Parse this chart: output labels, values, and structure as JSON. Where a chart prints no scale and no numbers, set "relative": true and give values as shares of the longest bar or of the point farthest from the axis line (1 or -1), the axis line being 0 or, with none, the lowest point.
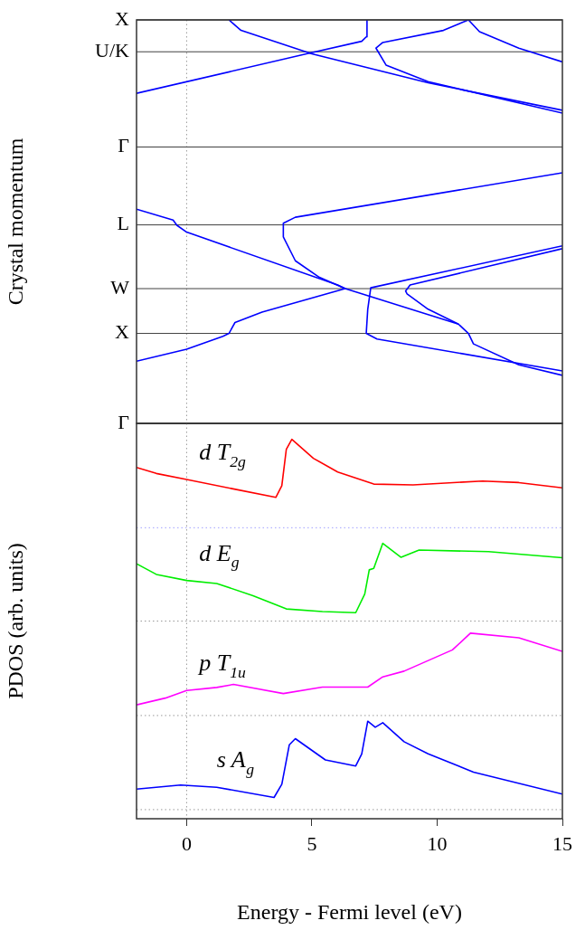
{
  "chart_data": [
    {
      "type": "line",
      "ylabel": "Crystal momentum",
      "xlim": [
        -2,
        15
      ],
      "xticks": [
        0,
        5,
        10,
        15
      ],
      "relative": true,
      "tick_labels": "y",
      "marker": "none",
      "ref_lines": [
        {
          "axis": "x",
          "value": 0,
          "color": "#999999",
          "line_style": "dotted"
        },
        {
          "axis": "y",
          "value": 0,
          "label": "Γ",
          "color": "#404040"
        },
        {
          "axis": "y",
          "value": 0.223,
          "label": "X",
          "color": "#404040"
        },
        {
          "axis": "y",
          "value": 0.334,
          "label": "W",
          "color": "#404040"
        },
        {
          "axis": "y",
          "value": 0.492,
          "label": "L",
          "color": "#404040"
        },
        {
          "axis": "y",
          "value": 0.685,
          "label": "Γ",
          "color": "#404040"
        },
        {
          "axis": "y",
          "value": 0.921,
          "label": "U/K",
          "color": "#404040"
        },
        {
          "axis": "y",
          "value": 1,
          "label": "X",
          "color": "#404040"
        }
      ],
      "series": [
        {
          "color": "#0000ff",
          "x": [
            -2.0,
            4.94,
            6.99,
            7.17,
            7.2
          ],
          "values": [
            0.818,
            0.918,
            0.947,
            0.958,
            1
          ]
        },
        {
          "color": "#0000ff",
          "x": [
            1.69,
            2.17,
            5.0,
            9.64,
            15.0
          ],
          "values": [
            1,
            0.974,
            0.916,
            0.844,
            0.776
          ]
        },
        {
          "color": "#0000ff",
          "x": [
            11.25,
            10.25,
            7.83,
            7.56,
            7.96,
            9.64,
            15.0
          ],
          "values": [
            1,
            0.974,
            0.944,
            0.93,
            0.888,
            0.847,
            0.769
          ]
        },
        {
          "color": "#0000ff",
          "x": [
            11.25,
            11.69,
            13.26,
            15.0
          ],
          "values": [
            1,
            0.971,
            0.93,
            0.896
          ]
        },
        {
          "color": "#0000ff",
          "x": [
            -2.0,
            -0.54,
            -0.39,
            0,
            6.03,
            6.33,
            10.85,
            11.25,
            11.45,
            13.26,
            15.0
          ],
          "values": [
            0.531,
            0.504,
            0.491,
            0.474,
            0.343,
            0.334,
            0.246,
            0.223,
            0.197,
            0.145,
            0.119
          ]
        },
        {
          "color": "#0000ff",
          "x": [
            15.0,
            4.34,
            3.86,
            3.86,
            4.34,
            5.3,
            6.33,
            3.01,
            1.93,
            1.69,
            1.45,
            0,
            -2.0
          ],
          "values": [
            0.621,
            0.511,
            0.496,
            0.462,
            0.403,
            0.362,
            0.334,
            0.276,
            0.25,
            0.223,
            0.216,
            0.184,
            0.154
          ]
        },
        {
          "color": "#0000ff",
          "x": [
            15.0,
            7.35,
            7.23,
            7.17,
            7.6,
            15.0
          ],
          "values": [
            0.44,
            0.336,
            0.283,
            0.223,
            0.209,
            0.13
          ]
        },
        {
          "color": "#0000ff",
          "x": [
            15.0,
            8.92,
            8.74,
            8.8,
            9.64,
            10.85
          ],
          "values": [
            0.433,
            0.343,
            0.328,
            0.321,
            0.283,
            0.246
          ]
        }
      ]
    },
    {
      "type": "line",
      "xlabel": "Energy - Fermi level (eV)",
      "ylabel": "PDOS (arb. units)",
      "xlim": [
        -2,
        15
      ],
      "xticks": [
        0,
        5,
        10,
        15
      ],
      "relative": true,
      "marker": "none",
      "ref_lines": [
        {
          "axis": "x",
          "value": 0,
          "color": "#999999",
          "line_style": "dotted"
        },
        {
          "axis": "y",
          "value": 0.767,
          "color": "#a0a0ff",
          "line_style": "dotted"
        },
        {
          "axis": "y",
          "value": 0.521,
          "color": "#999999",
          "line_style": "dotted"
        },
        {
          "axis": "y",
          "value": 0.272,
          "color": "#999999",
          "line_style": "dotted"
        },
        {
          "axis": "y",
          "value": 0.024,
          "color": "#999999",
          "line_style": "dotted"
        }
      ],
      "series": [
        {
          "name": "d T$_{2g}$",
          "color": "#ff0000",
          "x": [
            -2.0,
            -1.21,
            0,
            1.81,
            3.56,
            3.8,
            3.98,
            4.2,
            5.06,
            6.03,
            7.47,
            9.04,
            11.81,
            13.26,
            15.0
          ],
          "values": [
            0.926,
            0.91,
            0.894,
            0.87,
            0.847,
            0.878,
            0.974,
            1.0,
            0.95,
            0.914,
            0.882,
            0.88,
            0.89,
            0.886,
            0.872
          ]
        },
        {
          "name": "d E$_{g}$",
          "color": "#00ee00",
          "x": [
            -2.0,
            -1.21,
            0,
            1.2,
            2.65,
            3.98,
            5.42,
            6.75,
            7.11,
            7.29,
            7.47,
            7.83,
            8.56,
            9.28,
            12.05,
            15.0
          ],
          "values": [
            0.672,
            0.644,
            0.628,
            0.62,
            0.588,
            0.553,
            0.546,
            0.543,
            0.592,
            0.656,
            0.66,
            0.726,
            0.689,
            0.708,
            0.704,
            0.688
          ]
        },
        {
          "name": "p T$_{1u}$",
          "color": "#ff00ff",
          "x": [
            -2.0,
            -0.85,
            0,
            1.2,
            1.87,
            3.86,
            5.42,
            7.23,
            7.83,
            8.68,
            10.61,
            11.33,
            13.26,
            15.0
          ],
          "values": [
            0.3,
            0.318,
            0.338,
            0.346,
            0.354,
            0.33,
            0.347,
            0.347,
            0.374,
            0.389,
            0.445,
            0.489,
            0.477,
            0.441
          ]
        },
        {
          "name": "s A$_{g}$",
          "color": "#0000ff",
          "x": [
            -2.0,
            -0.24,
            1.2,
            3.49,
            3.8,
            4.1,
            4.34,
            5.54,
            6.75,
            6.99,
            7.23,
            7.53,
            7.83,
            8.68,
            9.64,
            11.45,
            15.0
          ],
          "values": [
            0.078,
            0.089,
            0.083,
            0.056,
            0.091,
            0.195,
            0.211,
            0.155,
            0.139,
            0.171,
            0.257,
            0.241,
            0.253,
            0.203,
            0.171,
            0.123,
            0.065
          ]
        }
      ]
    }
  ]
}
